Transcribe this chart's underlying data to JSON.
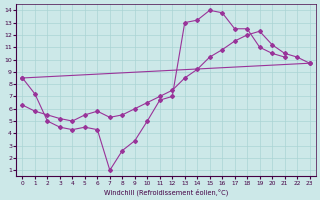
{
  "background_color": "#cce8e8",
  "grid_color": "#aad4d4",
  "line_color": "#993399",
  "xlabel": "Windchill (Refroidissement éolien,°C)",
  "xlim": [
    -0.5,
    23.5
  ],
  "ylim": [
    0.5,
    14.5
  ],
  "xticks": [
    0,
    1,
    2,
    3,
    4,
    5,
    6,
    7,
    8,
    9,
    10,
    11,
    12,
    13,
    14,
    15,
    16,
    17,
    18,
    19,
    20,
    21,
    22,
    23
  ],
  "yticks": [
    1,
    2,
    3,
    4,
    5,
    6,
    7,
    8,
    9,
    10,
    11,
    12,
    13,
    14
  ],
  "lines": [
    {
      "x": [
        0,
        1,
        2,
        3,
        4,
        5,
        6,
        7,
        8,
        9,
        10,
        11,
        12,
        13,
        14,
        15,
        16,
        17,
        18,
        19,
        20,
        21
      ],
      "y": [
        8.5,
        7.2,
        5.0,
        4.5,
        4.3,
        4.5,
        4.3,
        1.0,
        2.6,
        3.4,
        5.0,
        6.7,
        7.0,
        13.0,
        13.2,
        14.0,
        13.8,
        12.5,
        12.5,
        11.0,
        10.5,
        10.2
      ]
    },
    {
      "x": [
        0,
        23
      ],
      "y": [
        8.5,
        9.7
      ]
    },
    {
      "x": [
        0,
        1,
        2,
        3,
        4,
        5,
        6,
        7,
        8,
        9,
        10,
        11,
        12,
        13,
        14,
        15,
        16,
        17,
        18,
        19,
        20,
        21,
        22,
        23
      ],
      "y": [
        6.3,
        5.8,
        5.5,
        5.2,
        5.0,
        5.5,
        5.8,
        5.3,
        5.5,
        6.0,
        6.5,
        7.0,
        7.5,
        8.5,
        9.2,
        10.2,
        10.8,
        11.5,
        12.0,
        12.3,
        11.2,
        10.5,
        10.2,
        9.7
      ]
    }
  ]
}
